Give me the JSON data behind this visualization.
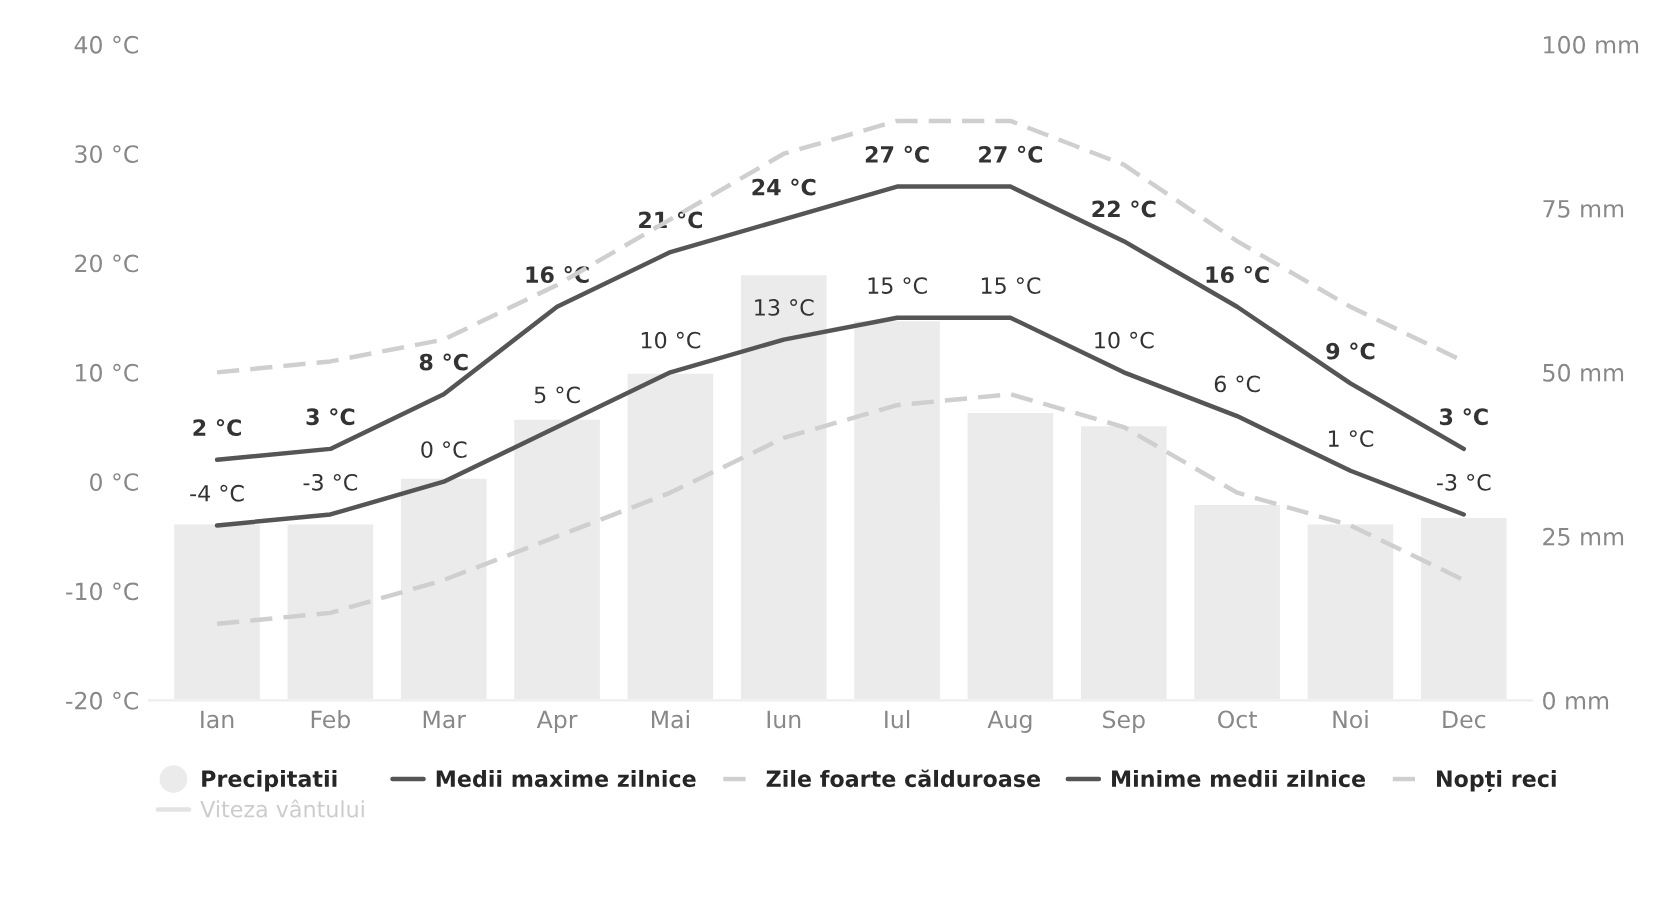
{
  "chart_data": {
    "type": "bar",
    "categories": [
      "Ian",
      "Feb",
      "Mar",
      "Apr",
      "Mai",
      "Iun",
      "Iul",
      "Aug",
      "Sep",
      "Oct",
      "Noi",
      "Dec"
    ],
    "series": [
      {
        "name": "Precipitatii",
        "axis": "y2",
        "color": "#ebebeb",
        "values": [
          27,
          27,
          34,
          43,
          50,
          65,
          58,
          44,
          42,
          30,
          27,
          28
        ]
      },
      {
        "name": "Medii maxime zilnice",
        "type": "line",
        "color": "#555555",
        "values": [
          2,
          3,
          8,
          16,
          21,
          24,
          27,
          27,
          22,
          16,
          9,
          3
        ],
        "value_labels": [
          "2 °C",
          "3 °C",
          "8 °C",
          "16 °C",
          "21 °C",
          "24 °C",
          "27 °C",
          "27 °C",
          "22 °C",
          "16 °C",
          "9 °C",
          "3 °C"
        ]
      },
      {
        "name": "Zile foarte călduroase",
        "type": "line",
        "line_style": "dashed",
        "color": "#cfcfcf",
        "values": [
          10,
          11,
          13,
          18,
          24,
          30,
          33,
          33,
          29,
          22,
          16,
          11
        ]
      },
      {
        "name": "Minime medii zilnice",
        "type": "line",
        "color": "#555555",
        "values": [
          -4,
          -3,
          0,
          5,
          10,
          13,
          15,
          15,
          10,
          6,
          1,
          -3
        ],
        "value_labels": [
          "-4 °C",
          "-3 °C",
          "0 °C",
          "5 °C",
          "10 °C",
          "13 °C",
          "15 °C",
          "15 °C",
          "10 °C",
          "6 °C",
          "1 °C",
          "-3 °C"
        ]
      },
      {
        "name": "Nopți reci",
        "type": "line",
        "line_style": "dashed",
        "color": "#cfcfcf",
        "values": [
          -13,
          -12,
          -9,
          -5,
          -1,
          4,
          7,
          8,
          5,
          -1,
          -4,
          -9
        ]
      },
      {
        "name": "Viteza vântului",
        "type": "line",
        "color": "#e3e3e3",
        "values": [
          null,
          null,
          null,
          null,
          null,
          null,
          null,
          null,
          null,
          null,
          null,
          null
        ]
      }
    ],
    "ylim": [
      -20,
      40
    ],
    "yticks": [
      {
        "value": -20,
        "label": "-20 °C"
      },
      {
        "value": -10,
        "label": "-10 °C"
      },
      {
        "value": 0,
        "label": "0 °C"
      },
      {
        "value": 10,
        "label": "10 °C"
      },
      {
        "value": 20,
        "label": "20 °C"
      },
      {
        "value": 30,
        "label": "30 °C"
      },
      {
        "value": 40,
        "label": "40 °C"
      }
    ],
    "y2lim": [
      0,
      100
    ],
    "y2ticks": [
      {
        "value": 0,
        "label": "0 mm"
      },
      {
        "value": 25,
        "label": "25 mm"
      },
      {
        "value": 50,
        "label": "50 mm"
      },
      {
        "value": 75,
        "label": "75 mm"
      },
      {
        "value": 100,
        "label": "100 mm"
      }
    ],
    "grid": false,
    "legend": "bottom"
  }
}
